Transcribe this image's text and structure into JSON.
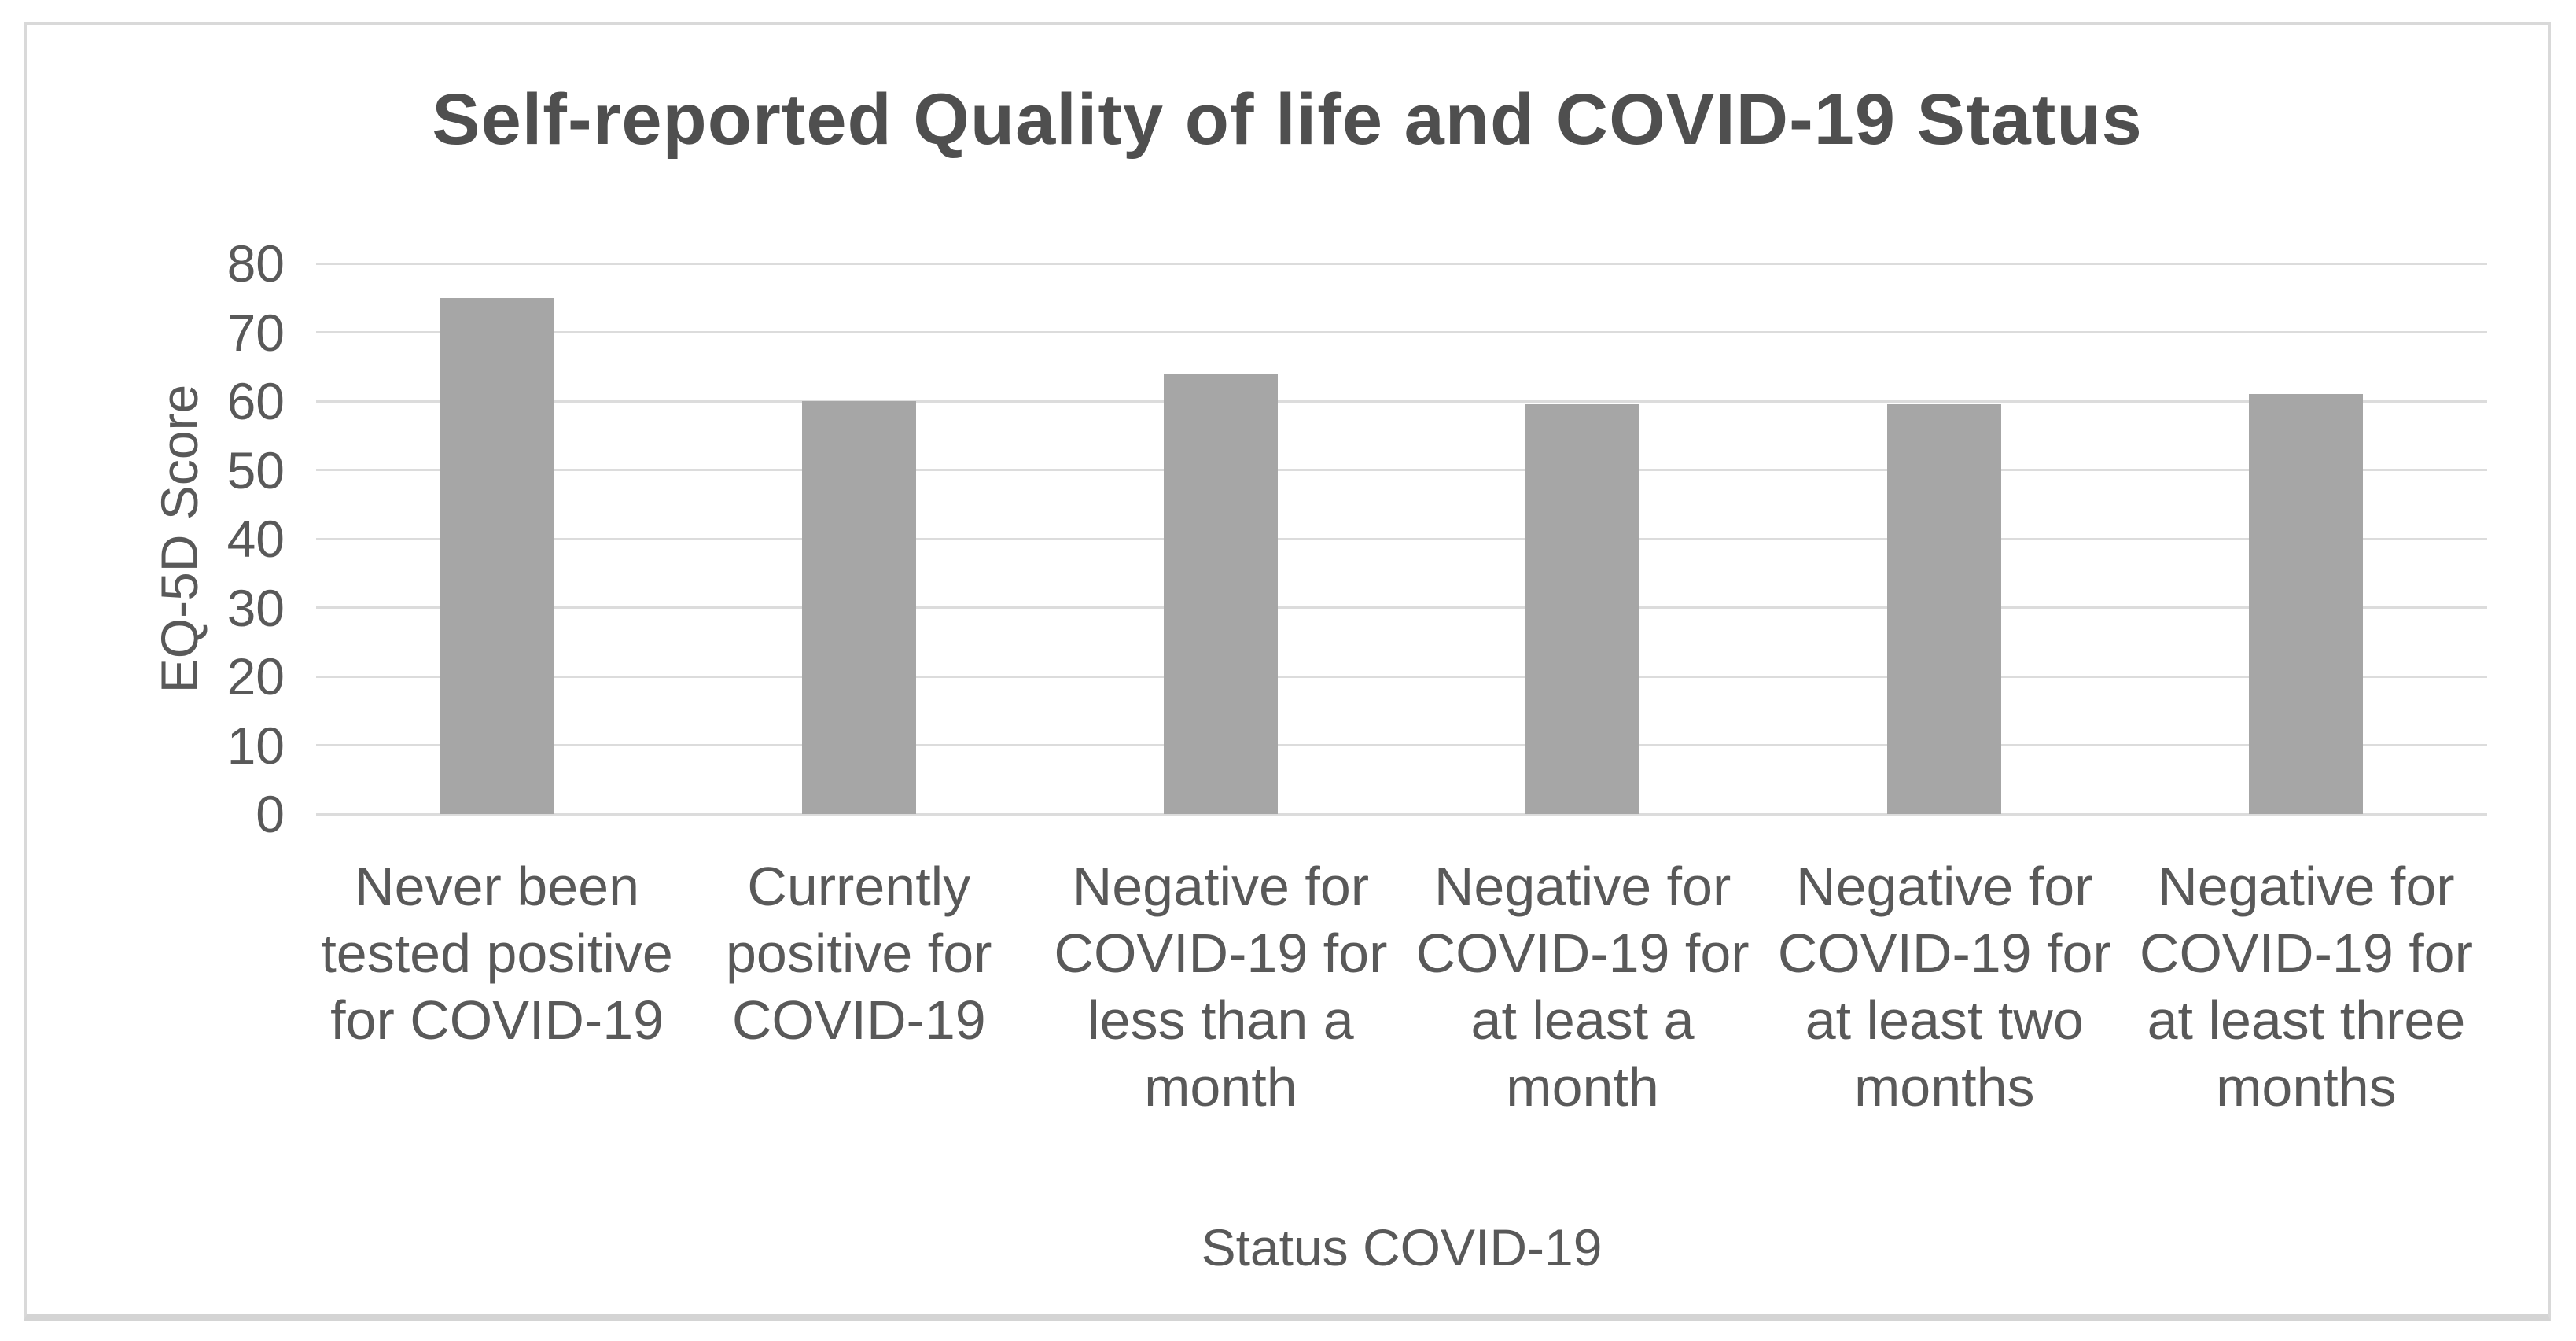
{
  "title": "Self-reported Quality of life and COVID-19 Status",
  "chart_data": {
    "type": "bar",
    "title": "Self-reported Quality of life and COVID-19 Status",
    "xlabel": "Status COVID-19",
    "ylabel": "EQ-5D Score",
    "ylim": [
      0,
      80
    ],
    "yticks": [
      0,
      10,
      20,
      30,
      40,
      50,
      60,
      70,
      80
    ],
    "grid": true,
    "legend": "none",
    "categories": [
      "Never been tested positive for COVID-19",
      "Currently positive for COVID-19",
      "Negative for COVID-19 for less than a month",
      "Negative for COVID-19 for at least a month",
      "Negative for COVID-19 for at least two months",
      "Negative for COVID-19 for at least three months"
    ],
    "categories_wrapped": [
      "Never been\ntested positive\nfor COVID-19",
      "Currently\npositive for\nCOVID-19",
      "Negative for\nCOVID-19 for\nless than a\nmonth",
      "Negative for\nCOVID-19 for\nat least a\nmonth",
      "Negative for\nCOVID-19 for\nat least two\nmonths",
      "Negative for\nCOVID-19 for\nat least three\nmonths"
    ],
    "values": [
      75,
      60,
      64,
      59.5,
      59.5,
      61
    ]
  },
  "colors": {
    "bar": "#a6a6a6",
    "text": "#595959",
    "title_text": "#4f4f4f",
    "gridline": "#dcdcdc",
    "frame_border": "#d9d9d9",
    "background": "#ffffff"
  }
}
